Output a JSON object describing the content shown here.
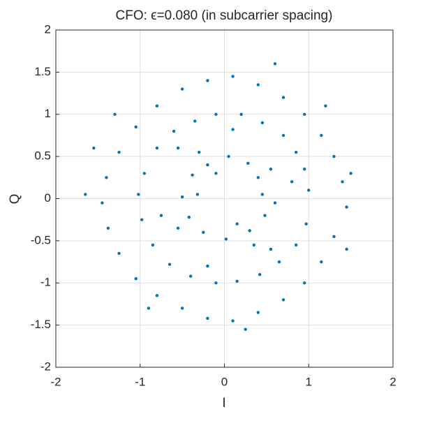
{
  "chart_data": {
    "type": "scatter",
    "title": "CFO: ϵ=0.080 (in subcarrier spacing)",
    "xlabel": "I",
    "ylabel": "Q",
    "color": "#0072bd",
    "xlim": [
      -2,
      2
    ],
    "ylim": [
      -2,
      2
    ],
    "xticks": [
      -2,
      -1,
      0,
      1,
      2
    ],
    "yticks": [
      -2,
      -1.5,
      -1,
      -0.5,
      0,
      0.5,
      1,
      1.5,
      2
    ],
    "grid": true,
    "x": [
      0.45,
      0.4,
      0.28,
      0.05,
      -0.2,
      -0.38,
      -0.5,
      -0.42,
      -0.25,
      0.02,
      0.3,
      0.48,
      0.55,
      -0.3,
      -0.55,
      0.35,
      0.6,
      -0.1,
      0.15,
      -0.32,
      1.0,
      0.95,
      0.85,
      0.7,
      0.45,
      0.2,
      -0.1,
      -0.35,
      -0.6,
      -0.8,
      -0.95,
      -1.02,
      -0.98,
      -0.85,
      -0.65,
      -0.4,
      -0.1,
      0.15,
      0.42,
      0.65,
      0.85,
      0.97,
      0.8,
      -0.75,
      0.1,
      -0.2,
      0.55,
      -0.55,
      1.4,
      1.3,
      1.15,
      0.95,
      0.7,
      0.4,
      0.1,
      -0.2,
      -0.5,
      -0.8,
      -1.05,
      -1.25,
      -1.4,
      -1.45,
      -1.38,
      -1.25,
      -1.05,
      -0.8,
      -0.5,
      -0.2,
      0.1,
      0.4,
      0.7,
      0.95,
      1.15,
      1.3,
      1.45,
      1.5,
      -1.65,
      0.6,
      -1.55,
      0.25,
      1.2,
      -0.9,
      1.45,
      -1.3
    ],
    "y": [
      0.05,
      0.25,
      0.42,
      0.5,
      0.4,
      0.28,
      0.02,
      -0.22,
      -0.4,
      -0.48,
      -0.38,
      -0.2,
      0.35,
      0.55,
      -0.35,
      -0.55,
      -0.05,
      0.3,
      -0.3,
      0.05,
      0.1,
      0.35,
      0.55,
      0.75,
      0.9,
      1.0,
      1.0,
      0.92,
      0.8,
      0.6,
      0.3,
      0.05,
      -0.25,
      -0.55,
      -0.78,
      -0.92,
      -1.0,
      -0.98,
      -0.9,
      -0.75,
      -0.55,
      -0.3,
      0.2,
      -0.2,
      0.82,
      -0.8,
      -0.6,
      0.6,
      0.2,
      0.5,
      0.75,
      1.0,
      1.2,
      1.35,
      1.45,
      1.4,
      1.3,
      1.1,
      0.85,
      0.55,
      0.25,
      -0.05,
      -0.35,
      -0.65,
      -0.95,
      -1.15,
      -1.3,
      -1.42,
      -1.45,
      -1.35,
      -1.2,
      -1.0,
      -0.75,
      -0.45,
      -0.1,
      0.3,
      0.05,
      1.6,
      0.6,
      -1.55,
      1.1,
      -1.3,
      -0.6,
      1.0
    ]
  }
}
